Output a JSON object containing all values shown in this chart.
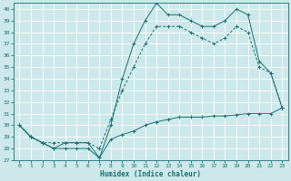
{
  "xlabel": "Humidex (Indice chaleur)",
  "bg_color": "#cce8ea",
  "line_color": "#1a7070",
  "grid_color": "#ffffff",
  "xlim": [
    -0.5,
    23.5
  ],
  "ylim": [
    27,
    40.5
  ],
  "xticks": [
    0,
    1,
    2,
    3,
    4,
    5,
    6,
    7,
    8,
    9,
    10,
    11,
    12,
    13,
    14,
    15,
    16,
    17,
    18,
    19,
    20,
    21,
    22,
    23
  ],
  "yticks": [
    27,
    28,
    29,
    30,
    31,
    32,
    33,
    34,
    35,
    36,
    37,
    38,
    39,
    40
  ],
  "line1_x": [
    0,
    1,
    2,
    3,
    4,
    5,
    6,
    7,
    8,
    9,
    10,
    11,
    12,
    13,
    14,
    15,
    16,
    17,
    18,
    19,
    20,
    21,
    22,
    23
  ],
  "line1_y": [
    30,
    29,
    28.5,
    28,
    28,
    28,
    28,
    27.2,
    28.8,
    29.2,
    29.5,
    30,
    30.3,
    30.5,
    30.7,
    30.7,
    30.7,
    30.8,
    30.8,
    30.9,
    31,
    31,
    31,
    31.5
  ],
  "line2_x": [
    0,
    1,
    2,
    3,
    4,
    5,
    6,
    7,
    8,
    9,
    10,
    11,
    12,
    13,
    14,
    15,
    16,
    17,
    18,
    19,
    20,
    21,
    22,
    23
  ],
  "line2_y": [
    30,
    29,
    28.5,
    28.5,
    28.5,
    28.5,
    28.5,
    28,
    30.5,
    33,
    35,
    37,
    38.5,
    38.5,
    38.5,
    38,
    37.5,
    37,
    37.5,
    38.5,
    38,
    35,
    34.5,
    31.5
  ],
  "line3_x": [
    0,
    1,
    2,
    3,
    4,
    5,
    6,
    7,
    8,
    9,
    10,
    11,
    12,
    13,
    14,
    15,
    16,
    17,
    18,
    19,
    20,
    21,
    22,
    23
  ],
  "line3_y": [
    30,
    29,
    28.5,
    28,
    28.5,
    28.5,
    28.5,
    27.2,
    30,
    34,
    37,
    39,
    40.5,
    39.5,
    39.5,
    39,
    38.5,
    38.5,
    39,
    40,
    39.5,
    35.5,
    34.5,
    31.5
  ]
}
